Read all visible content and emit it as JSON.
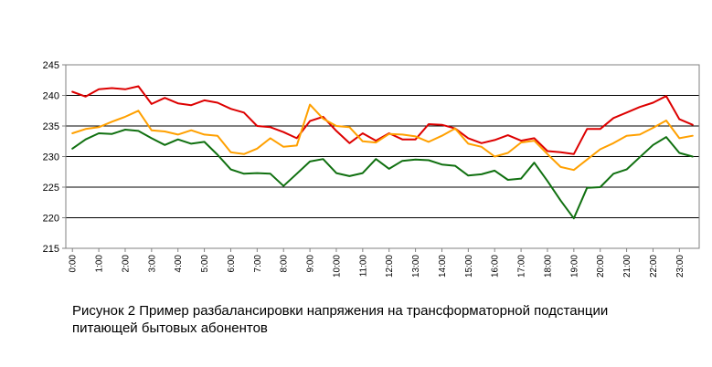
{
  "caption": {
    "line1": "Рисунок 2 Пример разбалансировки напряжения на трансформаторной подстанции",
    "line2": "питающей бытовых абонентов"
  },
  "chart_data": {
    "type": "line",
    "title": "",
    "xlabel": "",
    "ylabel": "",
    "ylim": [
      215,
      245
    ],
    "yticks": [
      "215",
      "220",
      "225",
      "230",
      "235",
      "240",
      "245"
    ],
    "xticks": [
      "0:00",
      "1:00",
      "2:00",
      "3:00",
      "4:00",
      "5:00",
      "6:00",
      "7:00",
      "8:00",
      "9:00",
      "10:00",
      "11:00",
      "12:00",
      "13:00",
      "14:00",
      "15:00",
      "16:00",
      "17:00",
      "18:00",
      "19:00",
      "20:00",
      "21:00",
      "22:00",
      "23:00"
    ],
    "grid": "horizontal",
    "legend": "none",
    "series": [
      {
        "color": "#dd0000",
        "values": [
          240.6,
          239.8,
          241.0,
          241.2,
          241.0,
          241.5,
          238.6,
          239.6,
          238.7,
          238.4,
          239.2,
          238.8,
          237.8,
          237.2,
          235.0,
          234.8,
          234.0,
          233.0,
          235.8,
          236.5,
          234.2,
          232.2,
          233.8,
          232.6,
          233.8,
          232.8,
          232.8,
          235.3,
          235.2,
          234.6,
          233.0,
          232.2,
          232.7,
          233.5,
          232.6,
          233.0,
          230.9,
          230.7,
          230.4,
          234.5,
          234.5,
          236.3,
          237.2,
          238.1,
          238.8,
          239.9,
          236.1,
          235.2
        ]
      },
      {
        "color": "#ffa000",
        "values": [
          233.8,
          234.5,
          234.8,
          235.7,
          236.5,
          237.5,
          234.3,
          234.1,
          233.6,
          234.3,
          233.6,
          233.4,
          230.7,
          230.4,
          231.3,
          233.0,
          231.6,
          231.8,
          238.5,
          236.2,
          235.0,
          234.8,
          232.5,
          232.3,
          233.7,
          233.6,
          233.3,
          232.4,
          233.4,
          234.6,
          232.1,
          231.6,
          230.0,
          230.6,
          232.3,
          232.6,
          230.4,
          228.3,
          227.8,
          229.5,
          231.2,
          232.2,
          233.4,
          233.6,
          234.7,
          235.9,
          233.0,
          233.4
        ]
      },
      {
        "color": "#107010",
        "values": [
          231.3,
          232.8,
          233.8,
          233.7,
          234.4,
          234.2,
          233.0,
          231.9,
          232.8,
          232.1,
          232.4,
          230.3,
          227.9,
          227.2,
          227.3,
          227.2,
          225.2,
          227.2,
          229.2,
          229.6,
          227.3,
          226.8,
          227.3,
          229.6,
          228.0,
          229.3,
          229.5,
          229.4,
          228.7,
          228.5,
          226.9,
          227.1,
          227.7,
          226.2,
          226.4,
          229.0,
          226.0,
          222.8,
          219.9,
          224.9,
          225.0,
          227.2,
          227.9,
          229.9,
          231.9,
          233.2,
          230.6,
          230.0
        ]
      }
    ]
  }
}
